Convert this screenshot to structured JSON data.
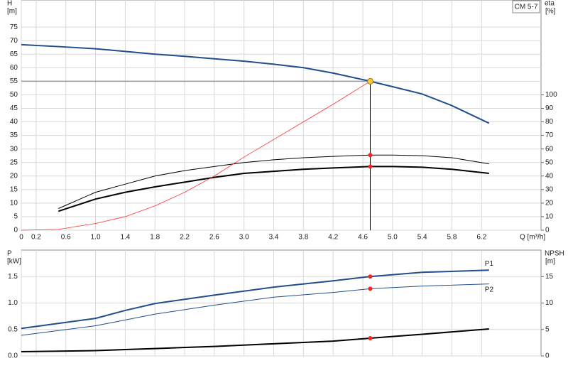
{
  "chart_data": [
    {
      "type": "line",
      "ylabel": "H",
      "yunit": "[m]",
      "y2label": "eta",
      "y2unit": "[%]",
      "xlabel": "Q [m³/h]",
      "annotation": "CM 5-7",
      "x": [
        0,
        0.5,
        1.0,
        1.4,
        1.8,
        2.2,
        2.6,
        3.0,
        3.4,
        3.8,
        4.2,
        4.7,
        5.0,
        5.4,
        5.8,
        6.3
      ],
      "xlim": [
        0,
        7.0
      ],
      "xticks": [
        0,
        0.2,
        0.6,
        {
          "value": 1.0,
          "label": "1.0"
        },
        1.4,
        1.8,
        2.2,
        2.6,
        {
          "value": 3.0,
          "label": "3.0"
        },
        3.4,
        3.8,
        4.2,
        4.6,
        {
          "value": 5.0,
          "label": "5.0"
        },
        5.4,
        5.8,
        6.2
      ],
      "ylim": [
        0,
        85
      ],
      "yticks": [
        0,
        5,
        10,
        15,
        20,
        25,
        30,
        35,
        40,
        45,
        50,
        55,
        60,
        65,
        70,
        75
      ],
      "y2lim": [
        0,
        170
      ],
      "y2ticks": [
        0,
        10,
        20,
        30,
        40,
        50,
        60,
        70,
        80,
        90,
        100
      ],
      "grid": true,
      "operating_point": {
        "x": 4.7,
        "y": 55
      },
      "series": [
        {
          "color": "#1f4e8c",
          "linewidth": 2,
          "values": [
            68.5,
            67.8,
            67,
            66,
            65,
            64.2,
            63.3,
            62.4,
            61.3,
            60,
            58,
            55,
            53,
            50.3,
            46,
            39.5
          ]
        },
        {
          "color": "#000000",
          "linewidth": 1,
          "axis": "y2",
          "values": [
            null,
            16,
            28,
            34,
            40,
            44,
            47,
            50,
            52,
            53.5,
            54.5,
            55.5,
            55.5,
            55,
            53.5,
            49
          ]
        },
        {
          "color": "#000000",
          "linewidth": 2,
          "axis": "y2",
          "values": [
            null,
            14,
            23,
            28,
            32,
            35.5,
            39,
            42,
            43.5,
            45,
            46,
            47,
            47,
            46.5,
            45,
            42
          ]
        },
        {
          "color": "#ff3333",
          "linewidth": 0.8,
          "values": [
            0,
            0.3,
            2.5,
            5,
            9,
            14,
            20,
            27,
            33.5,
            40,
            46.5,
            55,
            null,
            null,
            null,
            null
          ]
        }
      ]
    },
    {
      "type": "line",
      "ylabel": "P",
      "yunit": "[kW]",
      "y2label": "NPSH",
      "y2unit": "[m]",
      "x": [
        0,
        1.0,
        1.4,
        1.8,
        2.6,
        3.4,
        4.2,
        4.7,
        5.4,
        6.3
      ],
      "xlim": [
        0,
        7.0
      ],
      "ylim": [
        0,
        2.0
      ],
      "yticks": [
        {
          "value": 0,
          "label": "0.0"
        },
        0.5,
        {
          "value": 1,
          "label": "1.0"
        },
        1.5
      ],
      "y2lim": [
        0,
        20
      ],
      "y2ticks": [
        0,
        5,
        10,
        15
      ],
      "grid": true,
      "marker_x": 4.7,
      "series": [
        {
          "name": "P1",
          "color": "#1f4e8c",
          "linewidth": 2,
          "values": [
            0.52,
            0.71,
            0.86,
            0.99,
            1.15,
            1.3,
            1.42,
            1.5,
            1.58,
            1.62
          ]
        },
        {
          "name": "P2",
          "color": "#1f4e8c",
          "linewidth": 1,
          "values": [
            0.39,
            0.57,
            0.68,
            0.79,
            0.96,
            1.11,
            1.2,
            1.27,
            1.32,
            1.36
          ]
        },
        {
          "color": "#000000",
          "linewidth": 2,
          "axis": "y2",
          "values": [
            0.8,
            1.0,
            1.2,
            1.4,
            1.8,
            2.3,
            2.8,
            3.35,
            4.1,
            5.1
          ]
        }
      ]
    }
  ]
}
